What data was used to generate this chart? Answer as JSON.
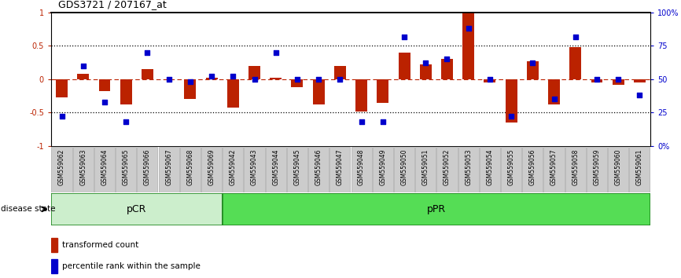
{
  "title": "GDS3721 / 207167_at",
  "samples": [
    "GSM559062",
    "GSM559063",
    "GSM559064",
    "GSM559065",
    "GSM559066",
    "GSM559067",
    "GSM559068",
    "GSM559069",
    "GSM559042",
    "GSM559043",
    "GSM559044",
    "GSM559045",
    "GSM559046",
    "GSM559047",
    "GSM559048",
    "GSM559049",
    "GSM559050",
    "GSM559051",
    "GSM559052",
    "GSM559053",
    "GSM559054",
    "GSM559055",
    "GSM559056",
    "GSM559057",
    "GSM559058",
    "GSM559059",
    "GSM559060",
    "GSM559061"
  ],
  "red_bars": [
    -0.27,
    0.08,
    -0.18,
    -0.38,
    0.15,
    0.0,
    -0.3,
    0.02,
    -0.42,
    0.2,
    0.02,
    -0.12,
    -0.38,
    0.2,
    -0.48,
    -0.35,
    0.4,
    0.22,
    0.3,
    1.0,
    -0.05,
    -0.65,
    0.27,
    -0.38,
    0.48,
    -0.05,
    -0.08,
    -0.05
  ],
  "blue_dots_pct": [
    0.22,
    0.6,
    0.33,
    0.18,
    0.7,
    0.5,
    0.48,
    0.52,
    0.52,
    0.5,
    0.7,
    0.5,
    0.5,
    0.5,
    0.18,
    0.18,
    0.82,
    0.62,
    0.65,
    0.88,
    0.5,
    0.22,
    0.62,
    0.35,
    0.82,
    0.5,
    0.5,
    0.38
  ],
  "pCR_count": 8,
  "pPR_count": 20,
  "bar_color": "#bb2200",
  "dot_color": "#0000cc",
  "pCR_facecolor": "#cceecc",
  "pPR_facecolor": "#55dd55",
  "border_color": "#228822",
  "bg_color": "#ffffff",
  "tick_label_bg": "#cccccc",
  "tick_label_border": "#aaaaaa"
}
